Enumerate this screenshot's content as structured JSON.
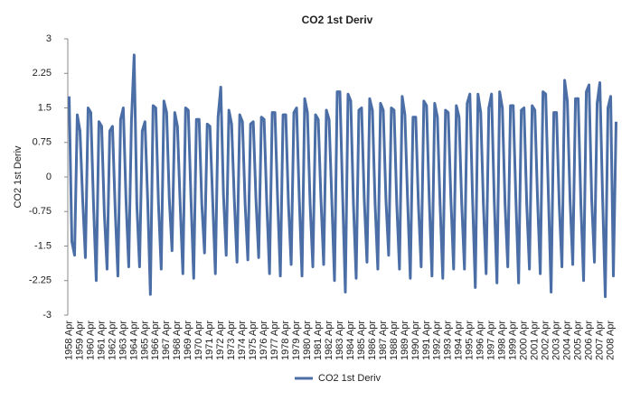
{
  "chart_data": {
    "type": "line",
    "title": "CO2 1st Deriv",
    "y_label": "CO2 1st Deriv",
    "categories": [
      "1958 Apr",
      null,
      null,
      null,
      "1959 Apr",
      null,
      null,
      null,
      "1960 Apr",
      null,
      null,
      null,
      "1961 Apr",
      null,
      null,
      null,
      "1962 Apr",
      null,
      null,
      null,
      "1963 Apr",
      null,
      null,
      null,
      "1964 Apr",
      null,
      null,
      null,
      "1965 Apr",
      null,
      null,
      null,
      "1966 Apr",
      null,
      null,
      null,
      "1967 Apr",
      null,
      null,
      null,
      "1968 Apr",
      null,
      null,
      null,
      "1969 Apr",
      null,
      null,
      null,
      "1970 Apr",
      null,
      null,
      null,
      "1971 Apr",
      null,
      null,
      null,
      "1972 Apr",
      null,
      null,
      null,
      "1973 Apr",
      null,
      null,
      null,
      "1974 Apr",
      null,
      null,
      null,
      "1975 Apr",
      null,
      null,
      null,
      "1976 Apr",
      null,
      null,
      null,
      "1977 Apr",
      null,
      null,
      null,
      "1978 Apr",
      null,
      null,
      null,
      "1979 Apr",
      null,
      null,
      null,
      "1980 Apr",
      null,
      null,
      null,
      "1981 Apr",
      null,
      null,
      null,
      "1982 Apr",
      null,
      null,
      null,
      "1983 Apr",
      null,
      null,
      null,
      "1984 Apr",
      null,
      null,
      null,
      "1985 Apr",
      null,
      null,
      null,
      "1986 Apr",
      null,
      null,
      null,
      "1987 Apr",
      null,
      null,
      null,
      "1988 Apr",
      null,
      null,
      null,
      "1989 Apr",
      null,
      null,
      null,
      "1990 Apr",
      null,
      null,
      null,
      "1991 Apr",
      null,
      null,
      null,
      "1992 Apr",
      null,
      null,
      null,
      "1993 Apr",
      null,
      null,
      null,
      "1994 Apr",
      null,
      null,
      null,
      "1995 Apr",
      null,
      null,
      null,
      "1996 Apr",
      null,
      null,
      null,
      "1997 Apr",
      null,
      null,
      null,
      "1998 Apr",
      null,
      null,
      null,
      "1999 Apr",
      null,
      null,
      null,
      "2000 Apr",
      null,
      null,
      null,
      "2001 Apr",
      null,
      null,
      null,
      "2002 Apr",
      null,
      null,
      null,
      "2003 Apr",
      null,
      null,
      null,
      "2004 Apr",
      null,
      null,
      null,
      "2005 Apr",
      null,
      null,
      null,
      "2006 Apr",
      null,
      null,
      null,
      "2007 Apr",
      null,
      null,
      null,
      "2008 Apr",
      null,
      null
    ],
    "series": [
      {
        "name": "CO2 1st Deriv",
        "color": "#4a6ea5",
        "values": [
          1.75,
          -1.4,
          -1.7,
          1.35,
          1.0,
          -0.5,
          -1.75,
          1.5,
          1.4,
          -0.6,
          -2.25,
          1.2,
          1.1,
          -0.8,
          -2.0,
          1.0,
          1.1,
          -0.7,
          -2.15,
          1.25,
          1.5,
          -0.5,
          -1.95,
          1.2,
          2.65,
          -0.6,
          -1.95,
          1.0,
          1.2,
          -0.5,
          -2.55,
          1.55,
          1.5,
          -0.6,
          -2.0,
          1.65,
          1.4,
          -0.5,
          -1.6,
          1.4,
          1.1,
          -0.6,
          -2.1,
          1.5,
          1.45,
          -0.5,
          -2.2,
          1.25,
          1.25,
          -0.6,
          -1.65,
          1.15,
          1.1,
          -0.5,
          -2.1,
          1.3,
          1.95,
          -0.4,
          -1.7,
          1.45,
          1.15,
          -0.5,
          -1.85,
          1.35,
          1.2,
          -0.6,
          -1.8,
          1.15,
          1.2,
          -0.5,
          -1.75,
          1.3,
          1.25,
          -0.6,
          -2.1,
          1.4,
          1.4,
          -0.5,
          -2.15,
          1.35,
          1.35,
          -0.6,
          -1.9,
          1.4,
          1.5,
          -0.5,
          -2.15,
          1.7,
          1.4,
          -0.6,
          -1.95,
          1.35,
          1.25,
          -0.5,
          -1.9,
          1.45,
          1.25,
          -0.5,
          -2.25,
          1.85,
          1.85,
          -0.4,
          -2.5,
          1.8,
          1.65,
          -0.6,
          -2.2,
          1.45,
          1.5,
          -0.5,
          -1.85,
          1.7,
          1.45,
          -0.6,
          -2.0,
          1.6,
          1.45,
          -0.5,
          -1.7,
          1.5,
          1.45,
          -0.6,
          -2.0,
          1.75,
          1.35,
          -0.5,
          -2.2,
          1.3,
          1.3,
          -0.6,
          -1.95,
          1.65,
          1.55,
          -0.5,
          -2.15,
          1.6,
          1.3,
          -0.6,
          -2.2,
          1.45,
          1.4,
          -0.5,
          -2.0,
          1.55,
          1.3,
          -0.6,
          -2.0,
          1.6,
          1.8,
          -0.5,
          -2.4,
          1.8,
          1.4,
          -0.6,
          -2.1,
          1.5,
          1.8,
          -0.5,
          -2.3,
          1.85,
          1.5,
          -0.6,
          -1.95,
          1.55,
          1.55,
          -0.5,
          -2.3,
          1.45,
          1.5,
          -0.6,
          -2.0,
          1.55,
          1.45,
          -0.5,
          -2.1,
          1.85,
          1.8,
          -0.4,
          -2.5,
          1.4,
          1.4,
          -0.6,
          -1.95,
          2.1,
          1.65,
          -0.5,
          -1.9,
          1.7,
          1.7,
          -0.6,
          -2.25,
          1.85,
          2.0,
          -0.5,
          -1.85,
          1.6,
          2.05,
          -0.4,
          -2.6,
          1.5,
          1.75,
          -2.15,
          1.2
        ]
      }
    ],
    "ylim": [
      -3,
      3
    ],
    "yticks": [
      3,
      2.25,
      1.5,
      0.75,
      0,
      -0.75,
      -1.5,
      -2.25,
      -3
    ],
    "grid": false,
    "legend": "bottom"
  }
}
